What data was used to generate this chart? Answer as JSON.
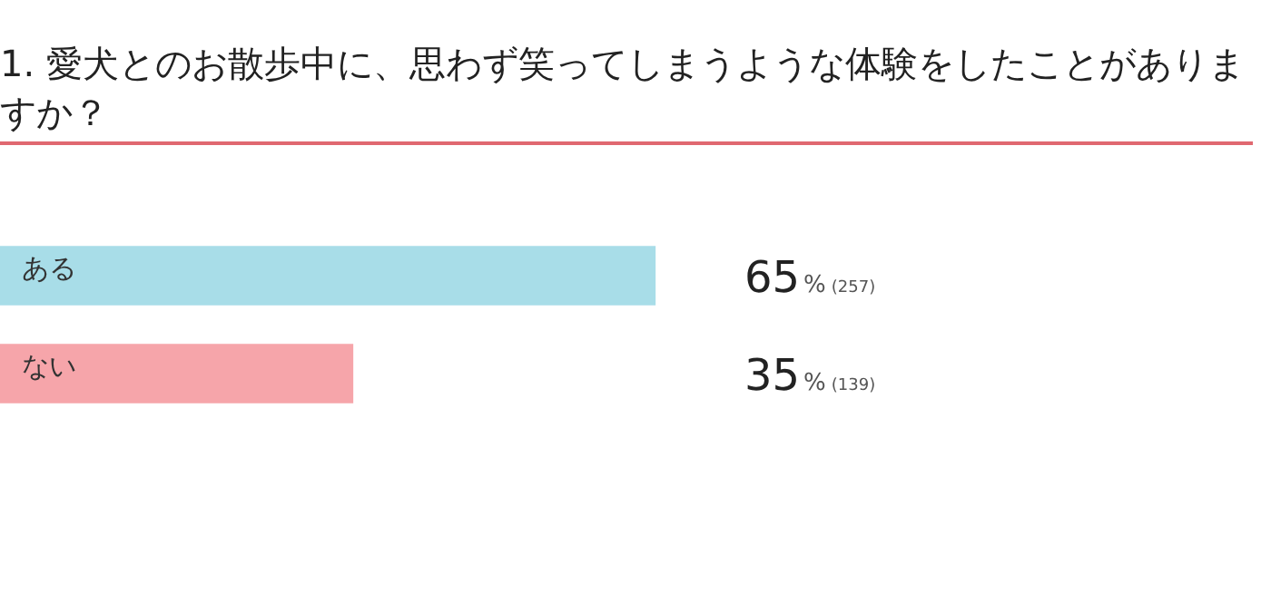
{
  "chart_data": {
    "type": "bar",
    "orientation": "horizontal",
    "title": "1. 愛犬とのお散歩中に、思わず笑ってしまうような体験をしたことがありますか？",
    "categories": [
      "ある",
      "ない"
    ],
    "values": [
      65,
      35
    ],
    "colors": [
      "#a8dde8",
      "#f6a5aa"
    ],
    "value_labels": [
      "65% (257)",
      "35% (139)"
    ],
    "tick_labels": false,
    "legend": false
  }
}
